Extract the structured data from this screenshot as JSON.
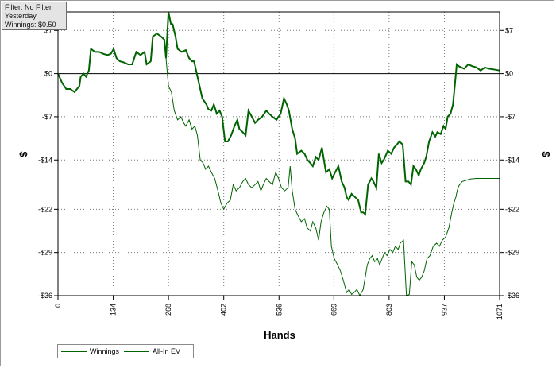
{
  "filter_box": {
    "line1": "Filter: No Filter",
    "line2": "Yesterday",
    "line3": "Winnings: $0.50"
  },
  "chart_data": {
    "type": "line",
    "title": "",
    "xlabel": "Hands",
    "ylabel": "$",
    "xlim": [
      0,
      1071
    ],
    "ylim": [
      -36,
      10
    ],
    "x_ticks": [
      0,
      134,
      268,
      402,
      536,
      669,
      803,
      937,
      1071
    ],
    "x_tick_labels": [
      "0",
      "134",
      "268",
      "402",
      "536",
      "669",
      "803",
      "937",
      "1071"
    ],
    "y_ticks": [
      7,
      0,
      -7,
      -14,
      -22,
      -29,
      -36
    ],
    "y_tick_labels": [
      "$7",
      "$0",
      "-$7",
      "-$14",
      "-$22",
      "-$29",
      "-$36"
    ],
    "grid": true,
    "legend_position": "bottom-left",
    "series": [
      {
        "name": "Winnings",
        "color": "#006400",
        "points": [
          [
            0,
            0
          ],
          [
            10,
            -1.5
          ],
          [
            20,
            -2.5
          ],
          [
            30,
            -2.5
          ],
          [
            40,
            -3
          ],
          [
            52,
            -2
          ],
          [
            55,
            -0.5
          ],
          [
            62,
            0
          ],
          [
            68,
            -0.5
          ],
          [
            75,
            0.5
          ],
          [
            80,
            4
          ],
          [
            90,
            3.5
          ],
          [
            100,
            3.5
          ],
          [
            110,
            3.2
          ],
          [
            120,
            3
          ],
          [
            128,
            3.2
          ],
          [
            135,
            4
          ],
          [
            142,
            2.5
          ],
          [
            150,
            2
          ],
          [
            160,
            1.8
          ],
          [
            170,
            1.5
          ],
          [
            180,
            1.5
          ],
          [
            190,
            3.5
          ],
          [
            200,
            3
          ],
          [
            210,
            3.5
          ],
          [
            215,
            1.5
          ],
          [
            225,
            2
          ],
          [
            230,
            6
          ],
          [
            240,
            6.5
          ],
          [
            250,
            6
          ],
          [
            258,
            5.5
          ],
          [
            262,
            2.5
          ],
          [
            268,
            10
          ],
          [
            274,
            8
          ],
          [
            278,
            8
          ],
          [
            285,
            6
          ],
          [
            290,
            4
          ],
          [
            300,
            3.5
          ],
          [
            310,
            3.8
          ],
          [
            318,
            2.5
          ],
          [
            325,
            2
          ],
          [
            330,
            2
          ],
          [
            340,
            -1
          ],
          [
            350,
            -4
          ],
          [
            360,
            -5
          ],
          [
            365,
            -5.8
          ],
          [
            372,
            -6
          ],
          [
            378,
            -5
          ],
          [
            385,
            -6.5
          ],
          [
            392,
            -6
          ],
          [
            398,
            -7
          ],
          [
            405,
            -11
          ],
          [
            412,
            -11
          ],
          [
            420,
            -10
          ],
          [
            428,
            -8.5
          ],
          [
            435,
            -7.5
          ],
          [
            440,
            -9
          ],
          [
            448,
            -9.5
          ],
          [
            455,
            -10
          ],
          [
            462,
            -6
          ],
          [
            470,
            -7
          ],
          [
            478,
            -8
          ],
          [
            485,
            -7.5
          ],
          [
            495,
            -7
          ],
          [
            505,
            -6
          ],
          [
            512,
            -6.5
          ],
          [
            520,
            -7
          ],
          [
            530,
            -7.5
          ],
          [
            540,
            -6.5
          ],
          [
            548,
            -4
          ],
          [
            555,
            -5
          ],
          [
            560,
            -6
          ],
          [
            568,
            -9
          ],
          [
            575,
            -10.5
          ],
          [
            580,
            -13
          ],
          [
            590,
            -12.5
          ],
          [
            598,
            -13
          ],
          [
            605,
            -14
          ],
          [
            612,
            -14.5
          ],
          [
            618,
            -15
          ],
          [
            625,
            -13.5
          ],
          [
            632,
            -14
          ],
          [
            640,
            -12
          ],
          [
            645,
            -14
          ],
          [
            650,
            -16
          ],
          [
            658,
            -15.5
          ],
          [
            665,
            -17
          ],
          [
            672,
            -16
          ],
          [
            680,
            -15
          ],
          [
            688,
            -17.5
          ],
          [
            695,
            -18.5
          ],
          [
            700,
            -20
          ],
          [
            705,
            -20.5
          ],
          [
            712,
            -19.5
          ],
          [
            720,
            -20
          ],
          [
            728,
            -20.5
          ],
          [
            735,
            -22.5
          ],
          [
            740,
            -22.5
          ],
          [
            745,
            -22.8
          ],
          [
            752,
            -18
          ],
          [
            760,
            -17
          ],
          [
            765,
            -17.5
          ],
          [
            772,
            -18.5
          ],
          [
            778,
            -13
          ],
          [
            785,
            -14.5
          ],
          [
            790,
            -14
          ],
          [
            800,
            -12.5
          ],
          [
            808,
            -13
          ],
          [
            815,
            -12
          ],
          [
            822,
            -11.5
          ],
          [
            828,
            -11
          ],
          [
            836,
            -11.5
          ],
          [
            843,
            -17.5
          ],
          [
            850,
            -17.5
          ],
          [
            856,
            -18
          ],
          [
            862,
            -15
          ],
          [
            868,
            -15.5
          ],
          [
            875,
            -16.5
          ],
          [
            880,
            -15.5
          ],
          [
            888,
            -14.5
          ],
          [
            893,
            -13.5
          ],
          [
            900,
            -11
          ],
          [
            908,
            -9.5
          ],
          [
            915,
            -10.2
          ],
          [
            920,
            -9.5
          ],
          [
            928,
            -9.8
          ],
          [
            935,
            -8.5
          ],
          [
            940,
            -9
          ],
          [
            945,
            -7
          ],
          [
            952,
            -6.5
          ],
          [
            958,
            -5
          ],
          [
            963,
            -1.5
          ],
          [
            967,
            1.5
          ],
          [
            972,
            1.2
          ],
          [
            978,
            1
          ],
          [
            985,
            0.8
          ],
          [
            995,
            1.5
          ],
          [
            1005,
            1.2
          ],
          [
            1015,
            1
          ],
          [
            1025,
            0.5
          ],
          [
            1035,
            1
          ],
          [
            1045,
            0.8
          ],
          [
            1055,
            0.7
          ],
          [
            1071,
            0.5
          ]
        ]
      },
      {
        "name": "All-In EV",
        "color": "#006400",
        "points": [
          [
            0,
            0
          ],
          [
            10,
            -1.5
          ],
          [
            20,
            -2.5
          ],
          [
            30,
            -2.5
          ],
          [
            40,
            -3
          ],
          [
            52,
            -2
          ],
          [
            55,
            -0.5
          ],
          [
            62,
            0
          ],
          [
            68,
            -0.5
          ],
          [
            75,
            0.5
          ],
          [
            80,
            4
          ],
          [
            90,
            3.5
          ],
          [
            100,
            3.5
          ],
          [
            110,
            3.2
          ],
          [
            120,
            3
          ],
          [
            128,
            3.2
          ],
          [
            135,
            4
          ],
          [
            142,
            2.5
          ],
          [
            150,
            2
          ],
          [
            160,
            1.8
          ],
          [
            170,
            1.5
          ],
          [
            180,
            1.5
          ],
          [
            190,
            3.5
          ],
          [
            200,
            3
          ],
          [
            210,
            3.5
          ],
          [
            215,
            1.5
          ],
          [
            225,
            2
          ],
          [
            230,
            6
          ],
          [
            240,
            6.5
          ],
          [
            250,
            6
          ],
          [
            258,
            5.5
          ],
          [
            262,
            2.5
          ],
          [
            268,
            -2
          ],
          [
            275,
            -3
          ],
          [
            282,
            -6
          ],
          [
            290,
            -7.5
          ],
          [
            298,
            -7
          ],
          [
            305,
            -8
          ],
          [
            310,
            -8.5
          ],
          [
            318,
            -7.5
          ],
          [
            325,
            -9
          ],
          [
            332,
            -8.5
          ],
          [
            338,
            -10
          ],
          [
            345,
            -14
          ],
          [
            352,
            -14.5
          ],
          [
            358,
            -15.5
          ],
          [
            365,
            -15
          ],
          [
            372,
            -16
          ],
          [
            380,
            -17
          ],
          [
            388,
            -19
          ],
          [
            395,
            -21
          ],
          [
            402,
            -22
          ],
          [
            410,
            -21
          ],
          [
            418,
            -20.5
          ],
          [
            425,
            -18
          ],
          [
            432,
            -19
          ],
          [
            440,
            -18.5
          ],
          [
            448,
            -17.5
          ],
          [
            455,
            -17
          ],
          [
            462,
            -18
          ],
          [
            470,
            -18.5
          ],
          [
            478,
            -18
          ],
          [
            485,
            -17.5
          ],
          [
            492,
            -19
          ],
          [
            498,
            -18
          ],
          [
            505,
            -17
          ],
          [
            512,
            -17.5
          ],
          [
            520,
            -18
          ],
          [
            528,
            -16
          ],
          [
            535,
            -17
          ],
          [
            542,
            -18.5
          ],
          [
            550,
            -19
          ],
          [
            558,
            -18.5
          ],
          [
            563,
            -15
          ],
          [
            568,
            -19
          ],
          [
            575,
            -22
          ],
          [
            582,
            -23
          ],
          [
            590,
            -24
          ],
          [
            598,
            -23.5
          ],
          [
            604,
            -25
          ],
          [
            612,
            -25.5
          ],
          [
            618,
            -24
          ],
          [
            625,
            -25
          ],
          [
            632,
            -27
          ],
          [
            638,
            -24
          ],
          [
            645,
            -22.5
          ],
          [
            652,
            -21.5
          ],
          [
            658,
            -22
          ],
          [
            663,
            -28
          ],
          [
            670,
            -30
          ],
          [
            678,
            -31
          ],
          [
            685,
            -32
          ],
          [
            692,
            -33.5
          ],
          [
            700,
            -35.5
          ],
          [
            706,
            -35
          ],
          [
            712,
            -35.8
          ],
          [
            718,
            -35.5
          ],
          [
            725,
            -35
          ],
          [
            732,
            -36
          ],
          [
            740,
            -35
          ],
          [
            745,
            -33
          ],
          [
            750,
            -31
          ],
          [
            756,
            -30
          ],
          [
            762,
            -29.5
          ],
          [
            768,
            -30.5
          ],
          [
            775,
            -30
          ],
          [
            780,
            -31
          ],
          [
            786,
            -30
          ],
          [
            792,
            -29
          ],
          [
            798,
            -29.5
          ],
          [
            805,
            -28.5
          ],
          [
            812,
            -29
          ],
          [
            818,
            -28
          ],
          [
            825,
            -28.5
          ],
          [
            830,
            -27.5
          ],
          [
            838,
            -27
          ],
          [
            845,
            -36
          ],
          [
            852,
            -35.8
          ],
          [
            858,
            -30.5
          ],
          [
            864,
            -31
          ],
          [
            870,
            -33
          ],
          [
            876,
            -33.5
          ],
          [
            882,
            -33
          ],
          [
            888,
            -32
          ],
          [
            895,
            -30
          ],
          [
            902,
            -29.5
          ],
          [
            910,
            -28
          ],
          [
            918,
            -27.5
          ],
          [
            925,
            -28
          ],
          [
            932,
            -27
          ],
          [
            940,
            -26.5
          ],
          [
            948,
            -25
          ],
          [
            955,
            -22.5
          ],
          [
            960,
            -21
          ],
          [
            965,
            -20
          ],
          [
            968,
            -19
          ],
          [
            972,
            -18.2
          ],
          [
            980,
            -17.5
          ],
          [
            990,
            -17.3
          ],
          [
            1000,
            -17.1
          ],
          [
            1015,
            -17
          ],
          [
            1030,
            -17
          ],
          [
            1045,
            -17
          ],
          [
            1060,
            -17
          ],
          [
            1071,
            -17
          ]
        ]
      }
    ]
  }
}
